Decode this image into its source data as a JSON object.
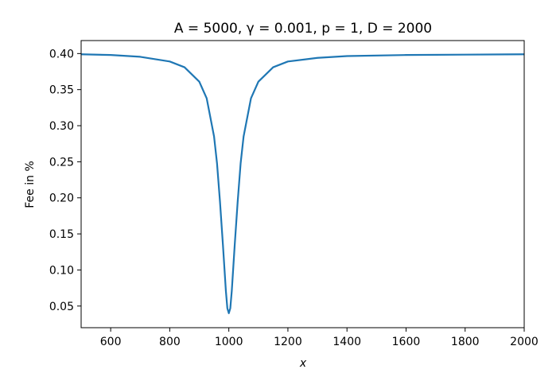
{
  "chart_data": {
    "type": "line",
    "title": "A = 5000, γ = 0.001, p = 1, D = 2000",
    "xlabel": "x",
    "ylabel": "Fee in %",
    "xlim": [
      500,
      2000
    ],
    "ylim": [
      0.02,
      0.418
    ],
    "x_ticks": [
      600,
      800,
      1000,
      1200,
      1400,
      1600,
      1800,
      2000
    ],
    "y_ticks": [
      0.05,
      0.1,
      0.15,
      0.2,
      0.25,
      0.3,
      0.35,
      0.4
    ],
    "x_tick_labels": [
      "600",
      "800",
      "1000",
      "1200",
      "1400",
      "1600",
      "1800",
      "2000"
    ],
    "y_tick_labels": [
      "0.05",
      "0.10",
      "0.15",
      "0.20",
      "0.25",
      "0.30",
      "0.35",
      "0.40"
    ],
    "grid": false,
    "legend": "none",
    "series": [
      {
        "color": "#1f77b4",
        "x": [
          500,
          600,
          700,
          800,
          850,
          900,
          925,
          950,
          960,
          970,
          980,
          990,
          995,
          1000,
          1005,
          1010,
          1020,
          1030,
          1040,
          1050,
          1075,
          1100,
          1150,
          1200,
          1300,
          1400,
          1600,
          1800,
          2000
        ],
        "y": [
          0.399,
          0.398,
          0.3955,
          0.389,
          0.381,
          0.361,
          0.338,
          0.285,
          0.248,
          0.195,
          0.135,
          0.071,
          0.047,
          0.04,
          0.047,
          0.071,
          0.135,
          0.195,
          0.248,
          0.285,
          0.338,
          0.361,
          0.381,
          0.389,
          0.394,
          0.3965,
          0.398,
          0.3985,
          0.399
        ]
      }
    ]
  }
}
